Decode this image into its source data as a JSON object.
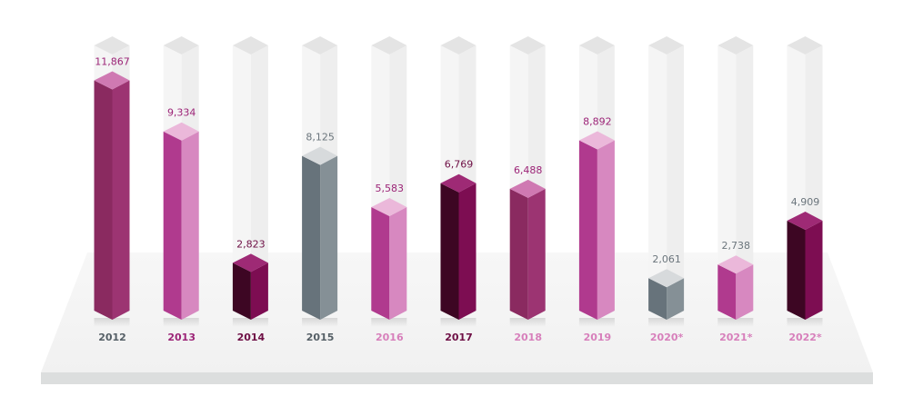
{
  "chart_data": {
    "type": "bar",
    "title": "",
    "xlabel": "",
    "ylabel": "",
    "ylim": [
      0,
      13600
    ],
    "grid": false,
    "legend": "none",
    "categories": [
      "2012",
      "2013",
      "2014",
      "2015",
      "2016",
      "2017",
      "2018",
      "2019",
      "2020*",
      "2021*",
      "2022*"
    ],
    "values": [
      11867,
      9334,
      2823,
      8125,
      5583,
      6769,
      6488,
      8892,
      2061,
      2738,
      4909
    ],
    "value_labels": [
      "11,867",
      "9,334",
      "2,823",
      "8,125",
      "5,583",
      "6,769",
      "6,488",
      "8,892",
      "2,061",
      "2,738",
      "4,909"
    ],
    "bar_colors": [
      {
        "front": "#8a2a60",
        "side": "#9c3472",
        "top": "#cf79b2"
      },
      {
        "front": "#b03a8e",
        "side": "#d788c0",
        "top": "#ebb8da"
      },
      {
        "front": "#3d0623",
        "side": "#7d0d52",
        "top": "#9e2a75"
      },
      {
        "front": "#67737b",
        "side": "#859096",
        "top": "#d7dadc"
      },
      {
        "front": "#b03a8e",
        "side": "#d788c0",
        "top": "#ebb8da"
      },
      {
        "front": "#3d0623",
        "side": "#7d0d52",
        "top": "#9e2a75"
      },
      {
        "front": "#8a2a60",
        "side": "#9c3472",
        "top": "#cf79b2"
      },
      {
        "front": "#b03a8e",
        "side": "#d788c0",
        "top": "#ebb8da"
      },
      {
        "front": "#67737b",
        "side": "#859096",
        "top": "#d7dadc"
      },
      {
        "front": "#b03a8e",
        "side": "#d788c0",
        "top": "#ebb8da"
      },
      {
        "front": "#3d0623",
        "side": "#7d0d52",
        "top": "#9e2a75"
      }
    ],
    "label_colors": [
      "#555f66",
      "#9c2477",
      "#6e0f45",
      "#555f66",
      "#d77fbb",
      "#6e0f45",
      "#d77fbb",
      "#d77fbb",
      "#d77fbb",
      "#d77fbb",
      "#d77fbb"
    ],
    "value_label_colors": [
      "#9c2477",
      "#9c2477",
      "#6e0f45",
      "#6b757c",
      "#9c2477",
      "#6e0f45",
      "#9c2477",
      "#9c2477",
      "#6b757c",
      "#6b757c",
      "#6b757c"
    ]
  }
}
